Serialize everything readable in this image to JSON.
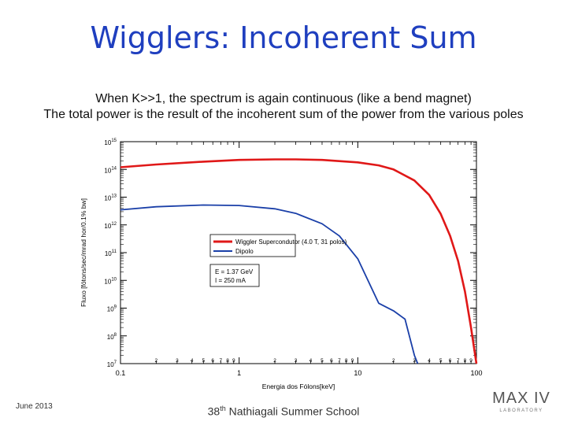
{
  "slide": {
    "title": "Wigglers: Incoherent Sum",
    "subtitle_line1": "When K>>1, the spectrum is again continuous (like a bend magnet)",
    "subtitle_line2": "The total power is the result of the incoherent sum of the power from the various poles"
  },
  "footer": {
    "date": "June 2013",
    "event_prefix": "38",
    "event_sup": "th",
    "event_suffix": " Nathiagali Summer School",
    "logo_text": "MAX IV",
    "logo_subtext": "LABORATORY"
  },
  "colors": {
    "title": "#1f3fbf",
    "wiggler": "#e01818",
    "dipole": "#1a3fa8"
  },
  "chart_data": {
    "type": "line",
    "xscale": "log",
    "yscale": "log",
    "xlim": [
      0.1,
      100
    ],
    "ylim": [
      10000000.0,
      1000000000000000.0
    ],
    "xlabel": "Energia dos Fólons[keV]",
    "ylabel": "Fluxo [fótons/sec/mrad hor/0.1% bw]",
    "x_tick_labels": [
      "0.1",
      "1",
      "10",
      "100"
    ],
    "x_minor_tick_labels": [
      "2",
      "3",
      "4",
      "5",
      "6",
      "7",
      "8",
      "9"
    ],
    "y_tick_labels": [
      {
        "base": "10",
        "exp": "7"
      },
      {
        "base": "10",
        "exp": "8"
      },
      {
        "base": "10",
        "exp": "9"
      },
      {
        "base": "10",
        "exp": "10"
      },
      {
        "base": "10",
        "exp": "11"
      },
      {
        "base": "10",
        "exp": "12"
      },
      {
        "base": "10",
        "exp": "13"
      },
      {
        "base": "10",
        "exp": "14"
      },
      {
        "base": "10",
        "exp": "15"
      }
    ],
    "grid": false,
    "legend": {
      "placement": "center-right",
      "entries": [
        "Wiggler Supercondutor (4.0 T, 31 polos)",
        "Dipolo"
      ]
    },
    "annotation": [
      "E = 1.37 GeV",
      "I = 250 mA"
    ],
    "series": [
      {
        "name": "Wiggler Supercondutor (4.0 T, 31 polos)",
        "color": "#e01818",
        "x": [
          0.1,
          0.2,
          0.5,
          1,
          2,
          3,
          5,
          10,
          15,
          20,
          30,
          40,
          50,
          60,
          70,
          80,
          90,
          100
        ],
        "y": [
          120000000000000.0,
          150000000000000.0,
          190000000000000.0,
          220000000000000.0,
          230000000000000.0,
          230000000000000.0,
          220000000000000.0,
          180000000000000.0,
          140000000000000.0,
          100000000000000.0,
          40000000000000.0,
          12000000000000.0,
          2500000000000.0,
          400000000000.0,
          50000000000.0,
          4000000000.0,
          200000000.0,
          10000000.0
        ]
      },
      {
        "name": "Dipolo",
        "color": "#1a3fa8",
        "x": [
          0.1,
          0.2,
          0.5,
          1,
          2,
          3,
          5,
          7,
          10,
          15,
          20,
          25,
          30,
          32
        ],
        "y": [
          3500000000000.0,
          4500000000000.0,
          5200000000000.0,
          5000000000000.0,
          3800000000000.0,
          2600000000000.0,
          1100000000000.0,
          400000000000.0,
          60000000000.0,
          1500000000.0,
          800000000.0,
          400000000.0,
          20000000.0,
          10000000.0
        ]
      }
    ]
  }
}
